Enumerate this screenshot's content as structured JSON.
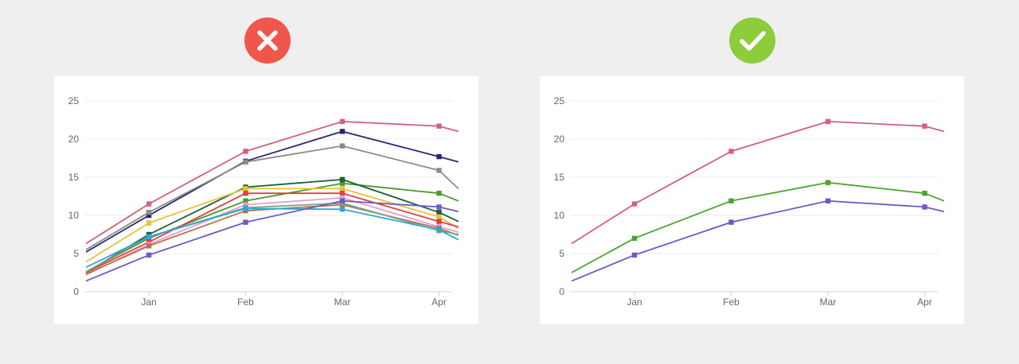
{
  "verdicts": {
    "bad": {
      "icon": "x-icon",
      "color": "#f0574b"
    },
    "good": {
      "icon": "check-icon",
      "color": "#8dcc3a"
    }
  },
  "chart_data": [
    {
      "type": "line",
      "categories": [
        "Jan",
        "Feb",
        "Mar",
        "Apr"
      ],
      "x": [
        -0.65,
        0,
        1,
        2,
        3,
        3.2
      ],
      "ylim": [
        0,
        25
      ],
      "yticks": [
        0,
        5,
        10,
        15,
        20,
        25
      ],
      "grid": true,
      "legend": "none",
      "series": [
        {
          "color": "#d4607e",
          "values": [
            6.3,
            11.5,
            18.4,
            22.3,
            21.7,
            21.0
          ]
        },
        {
          "color": "#2b2470",
          "values": [
            5.2,
            10.0,
            17.1,
            21.0,
            17.7,
            17.0
          ]
        },
        {
          "color": "#8f8a86",
          "values": [
            5.5,
            10.4,
            17.0,
            19.1,
            15.9,
            13.5
          ]
        },
        {
          "color": "#4a9a2f",
          "values": [
            2.6,
            7.0,
            11.9,
            14.2,
            12.9,
            11.9
          ]
        },
        {
          "color": "#1b5e3a",
          "values": [
            2.5,
            7.5,
            13.7,
            14.7,
            10.4,
            9.2
          ]
        },
        {
          "color": "#e8c13c",
          "values": [
            3.9,
            9.0,
            13.5,
            13.5,
            9.8,
            8.3
          ]
        },
        {
          "color": "#e04040",
          "values": [
            2.5,
            6.5,
            12.9,
            12.9,
            9.2,
            8.5
          ]
        },
        {
          "color": "#e89ad6",
          "values": [
            2.2,
            6.2,
            11.4,
            12.3,
            8.5,
            7.8
          ]
        },
        {
          "color": "#b8704a",
          "values": [
            2.3,
            6.0,
            10.6,
            11.4,
            8.3,
            7.4
          ]
        },
        {
          "color": "#7aa37a",
          "values": [
            2.6,
            7.2,
            11.0,
            11.6,
            8.0,
            7.5
          ]
        },
        {
          "color": "#2aa8d8",
          "values": [
            3.2,
            7.2,
            10.9,
            10.8,
            8.1,
            6.8
          ]
        },
        {
          "color": "#6b5bc6",
          "values": [
            1.4,
            4.8,
            9.1,
            11.9,
            11.1,
            10.5
          ]
        }
      ]
    },
    {
      "type": "line",
      "categories": [
        "Jan",
        "Feb",
        "Mar",
        "Apr"
      ],
      "x": [
        -0.65,
        0,
        1,
        2,
        3,
        3.2
      ],
      "ylim": [
        0,
        25
      ],
      "yticks": [
        0,
        5,
        10,
        15,
        20,
        25
      ],
      "grid": true,
      "legend": "none",
      "series": [
        {
          "color": "#d4607e",
          "values": [
            6.3,
            11.5,
            18.4,
            22.3,
            21.7,
            21.0
          ]
        },
        {
          "color": "#4aa52f",
          "values": [
            2.5,
            7.0,
            11.9,
            14.3,
            12.9,
            11.9
          ]
        },
        {
          "color": "#6b5bc6",
          "values": [
            1.4,
            4.8,
            9.1,
            11.9,
            11.1,
            10.5
          ]
        }
      ]
    }
  ]
}
